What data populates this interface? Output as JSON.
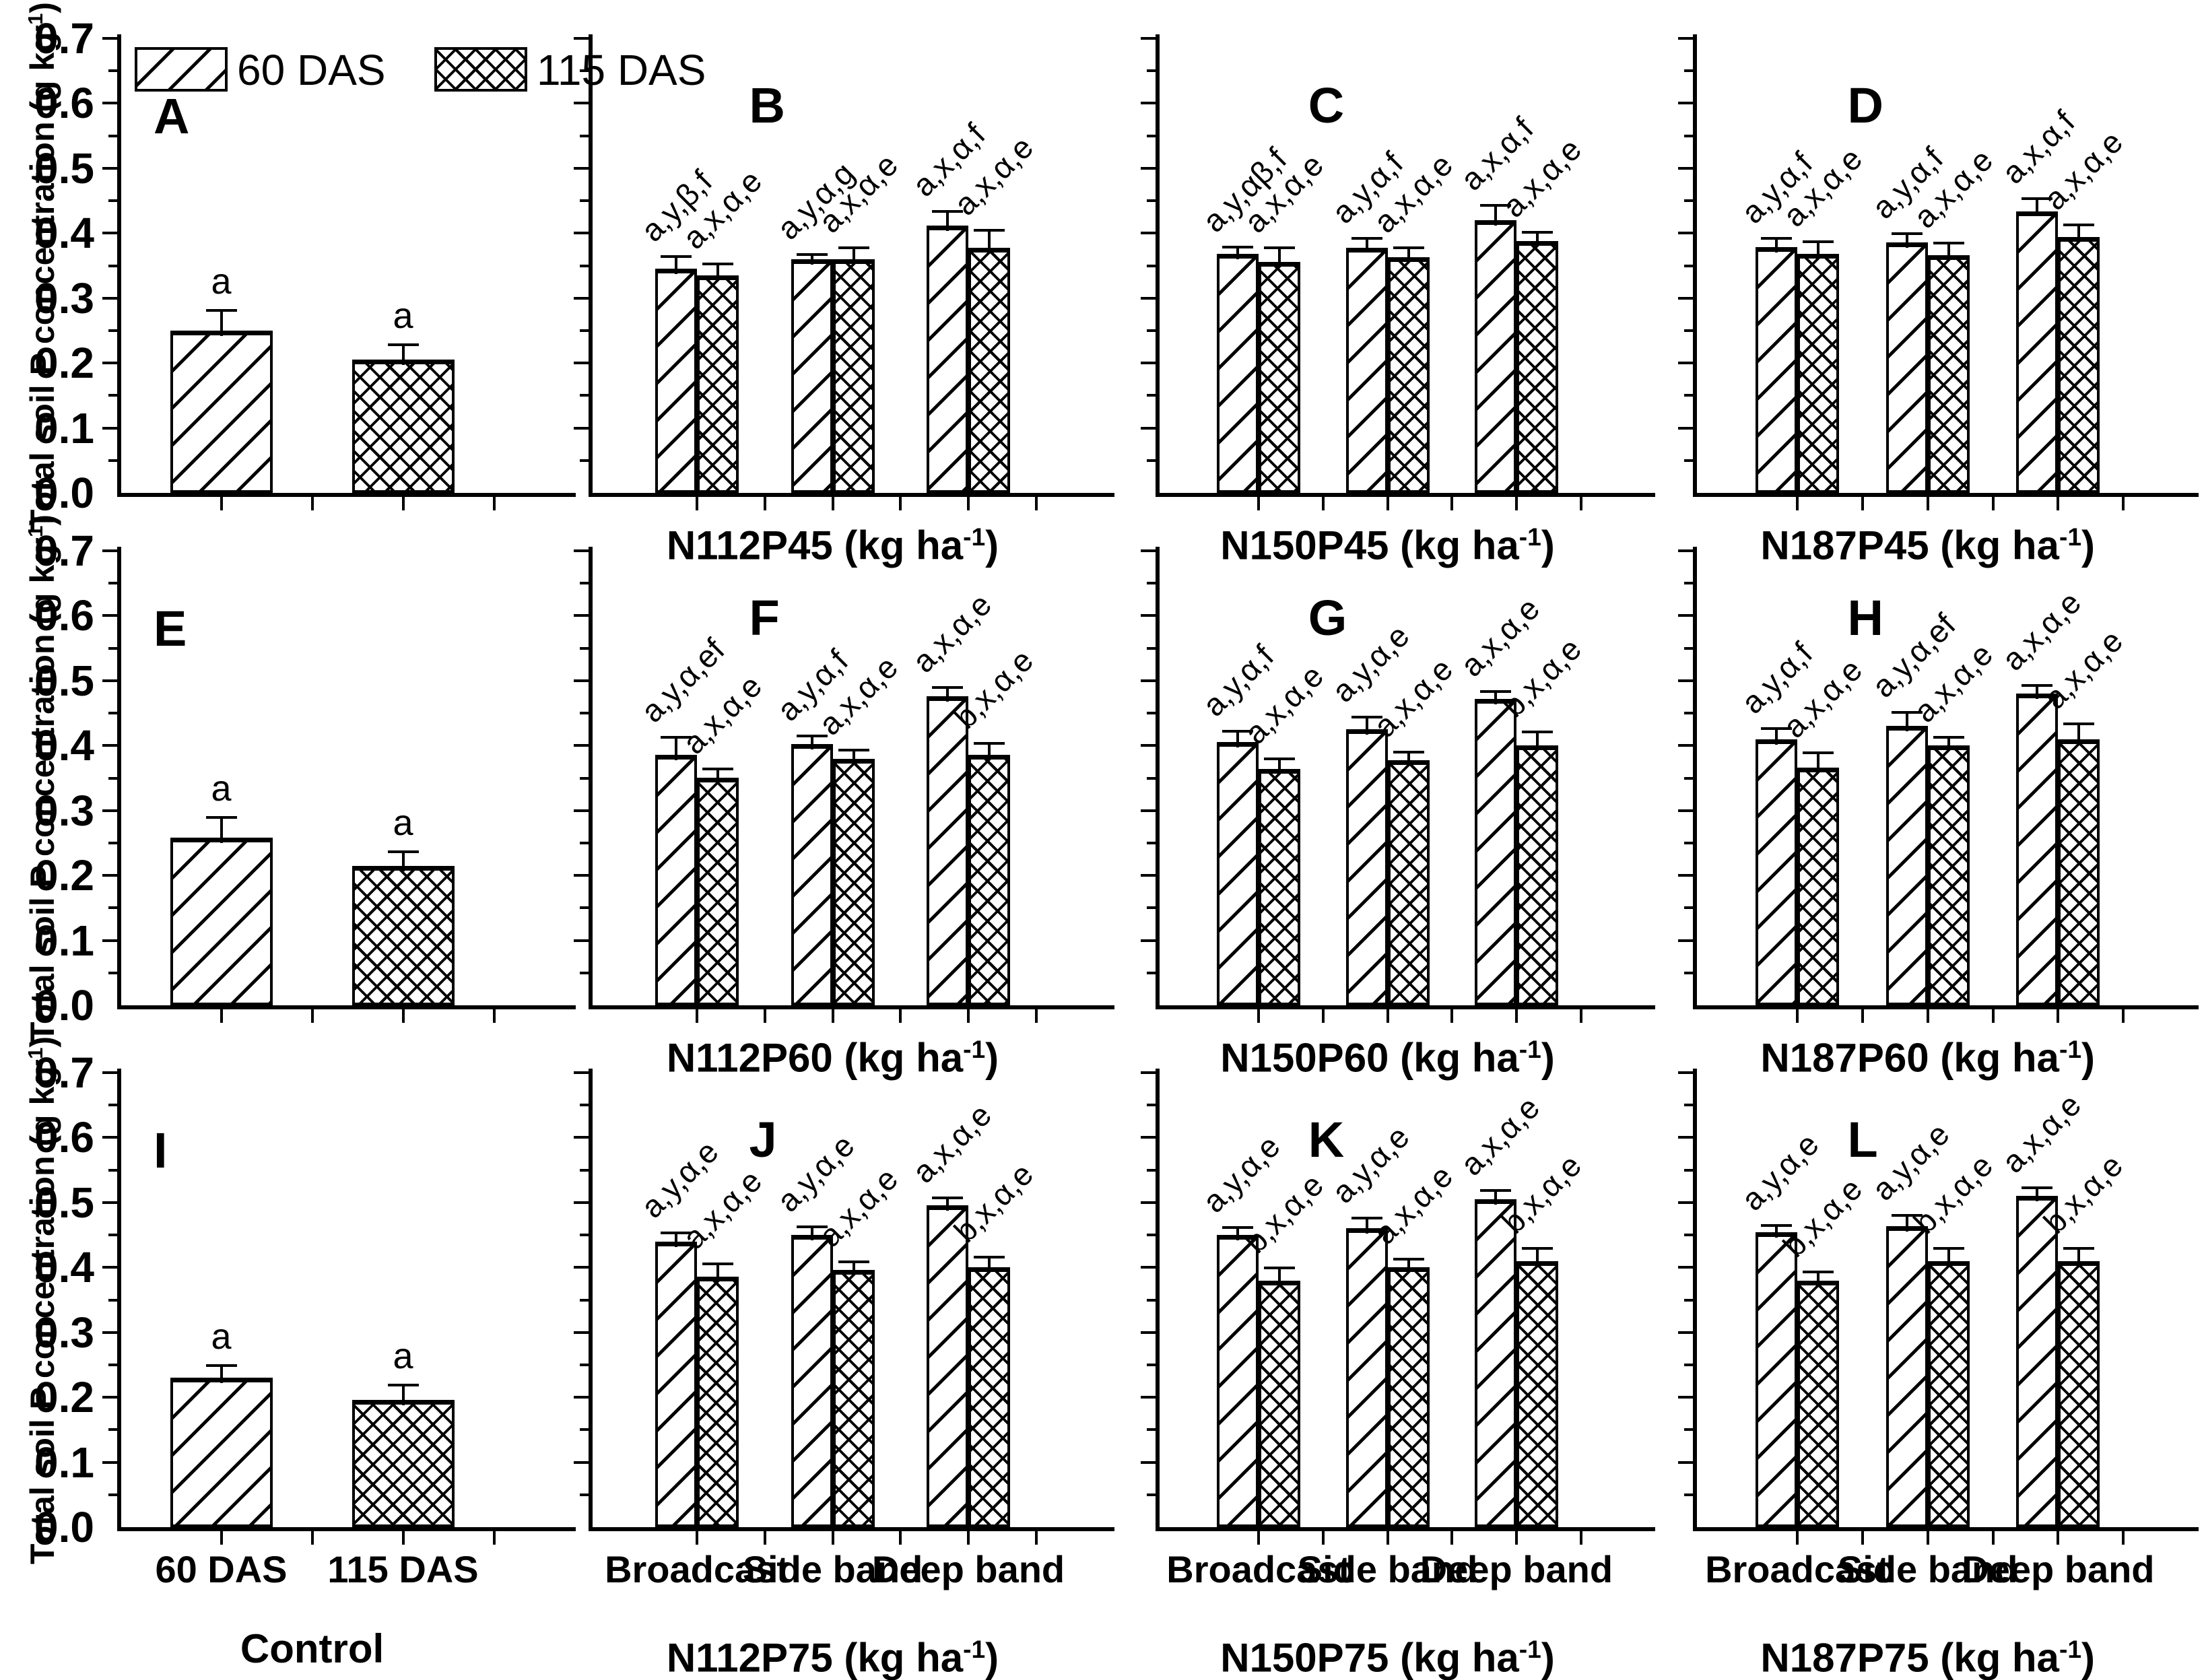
{
  "y_axis": {
    "label_pre": "Total soil P concentration (g kg",
    "label_sup": "-1",
    "label_post": ")",
    "tick_labels": [
      "0.0",
      "0.1",
      "0.2",
      "0.3",
      "0.4",
      "0.5",
      "0.6",
      "0.7"
    ],
    "max": 0.7
  },
  "unit_suffix": {
    "pre": " (kg ha",
    "sup": "-1",
    "post": ")"
  },
  "legend": {
    "items": [
      {
        "label": "60 DAS",
        "pattern": "diagonal"
      },
      {
        "label": "115 DAS",
        "pattern": "crosshatch"
      }
    ]
  },
  "x_tick_labels": {
    "control": [
      "60 DAS",
      "115 DAS"
    ],
    "treatment": [
      "Broadcast",
      "Side band",
      "Deep band"
    ]
  },
  "chart_data": {
    "type": "bar",
    "ylim": [
      0,
      0.7
    ],
    "grid": false,
    "series_names": [
      "60 DAS",
      "115 DAS"
    ],
    "panels": [
      {
        "id": "A",
        "kind": "control",
        "group_label": null,
        "bars": [
          {
            "series": "60 DAS",
            "value": 0.25,
            "err": 0.03,
            "note": "a"
          },
          {
            "series": "115 DAS",
            "value": 0.205,
            "err": 0.022,
            "note": "a"
          }
        ]
      },
      {
        "id": "B",
        "kind": "treatment",
        "group_label": "N112P45",
        "groups": [
          {
            "name": "Broadcast",
            "bars": [
              {
                "series": "60 DAS",
                "value": 0.345,
                "err": 0.018,
                "note": "a,y,β,f"
              },
              {
                "series": "115 DAS",
                "value": 0.335,
                "err": 0.017,
                "note": "a,x,α,e"
              }
            ]
          },
          {
            "name": "Side band",
            "bars": [
              {
                "series": "60 DAS",
                "value": 0.36,
                "err": 0.006,
                "note": "a,y,α,g"
              },
              {
                "series": "115 DAS",
                "value": 0.36,
                "err": 0.016,
                "note": "a,x,α,e"
              }
            ]
          },
          {
            "name": "Deep band",
            "bars": [
              {
                "series": "60 DAS",
                "value": 0.412,
                "err": 0.02,
                "note": "a,x,α,f"
              },
              {
                "series": "115 DAS",
                "value": 0.378,
                "err": 0.025,
                "note": "a,x,α,e"
              }
            ]
          }
        ]
      },
      {
        "id": "C",
        "kind": "treatment",
        "group_label": "N150P45",
        "groups": [
          {
            "name": "Broadcast",
            "bars": [
              {
                "series": "60 DAS",
                "value": 0.368,
                "err": 0.01,
                "note": "a,y,αβ,f"
              },
              {
                "series": "115 DAS",
                "value": 0.356,
                "err": 0.02,
                "note": "a,x,α,e"
              }
            ]
          },
          {
            "name": "Side band",
            "bars": [
              {
                "series": "60 DAS",
                "value": 0.378,
                "err": 0.013,
                "note": "a,y,α,f"
              },
              {
                "series": "115 DAS",
                "value": 0.363,
                "err": 0.013,
                "note": "a,x,α,e"
              }
            ]
          },
          {
            "name": "Deep band",
            "bars": [
              {
                "series": "60 DAS",
                "value": 0.42,
                "err": 0.022,
                "note": "a,x,α,f"
              },
              {
                "series": "115 DAS",
                "value": 0.388,
                "err": 0.012,
                "note": "a,x,α,e"
              }
            ]
          }
        ]
      },
      {
        "id": "D",
        "kind": "treatment",
        "group_label": "N187P45",
        "groups": [
          {
            "name": "Broadcast",
            "bars": [
              {
                "series": "60 DAS",
                "value": 0.379,
                "err": 0.012,
                "note": "a,y,α,f"
              },
              {
                "series": "115 DAS",
                "value": 0.368,
                "err": 0.018,
                "note": "a,x,α,e"
              }
            ]
          },
          {
            "name": "Side band",
            "bars": [
              {
                "series": "60 DAS",
                "value": 0.386,
                "err": 0.012,
                "note": "a,y,α,f"
              },
              {
                "series": "115 DAS",
                "value": 0.366,
                "err": 0.018,
                "note": "a,x,α,e"
              }
            ]
          },
          {
            "name": "Deep band",
            "bars": [
              {
                "series": "60 DAS",
                "value": 0.434,
                "err": 0.018,
                "note": "a,x,α,f"
              },
              {
                "series": "115 DAS",
                "value": 0.394,
                "err": 0.018,
                "note": "a,x,α,e"
              }
            ]
          }
        ]
      },
      {
        "id": "E",
        "kind": "control",
        "group_label": null,
        "bars": [
          {
            "series": "60 DAS",
            "value": 0.258,
            "err": 0.03,
            "note": "a"
          },
          {
            "series": "115 DAS",
            "value": 0.215,
            "err": 0.02,
            "note": "a"
          }
        ]
      },
      {
        "id": "F",
        "kind": "treatment",
        "group_label": "N112P60",
        "groups": [
          {
            "name": "Broadcast",
            "bars": [
              {
                "series": "60 DAS",
                "value": 0.386,
                "err": 0.026,
                "note": "a,y,α,ef"
              },
              {
                "series": "115 DAS",
                "value": 0.351,
                "err": 0.012,
                "note": "a,x,α,e"
              }
            ]
          },
          {
            "name": "Side band",
            "bars": [
              {
                "series": "60 DAS",
                "value": 0.402,
                "err": 0.012,
                "note": "a,y,α,f"
              },
              {
                "series": "115 DAS",
                "value": 0.38,
                "err": 0.012,
                "note": "a,x,α,e"
              }
            ]
          },
          {
            "name": "Deep band",
            "bars": [
              {
                "series": "60 DAS",
                "value": 0.476,
                "err": 0.012,
                "note": "a,x,α,e"
              },
              {
                "series": "115 DAS",
                "value": 0.386,
                "err": 0.016,
                "note": "b,x,α,e"
              }
            ]
          }
        ]
      },
      {
        "id": "G",
        "kind": "treatment",
        "group_label": "N150P60",
        "groups": [
          {
            "name": "Broadcast",
            "bars": [
              {
                "series": "60 DAS",
                "value": 0.405,
                "err": 0.016,
                "note": "a,y,α,f"
              },
              {
                "series": "115 DAS",
                "value": 0.364,
                "err": 0.015,
                "note": "a,x,α,e"
              }
            ]
          },
          {
            "name": "Side band",
            "bars": [
              {
                "series": "60 DAS",
                "value": 0.425,
                "err": 0.018,
                "note": "a,y,α,e"
              },
              {
                "series": "115 DAS",
                "value": 0.377,
                "err": 0.012,
                "note": "a,x,α,e"
              }
            ]
          },
          {
            "name": "Deep band",
            "bars": [
              {
                "series": "60 DAS",
                "value": 0.472,
                "err": 0.01,
                "note": "a,x,α,e"
              },
              {
                "series": "115 DAS",
                "value": 0.4,
                "err": 0.02,
                "note": "b,x,α,e"
              }
            ]
          }
        ]
      },
      {
        "id": "H",
        "kind": "treatment",
        "group_label": "N187P60",
        "groups": [
          {
            "name": "Broadcast",
            "bars": [
              {
                "series": "60 DAS",
                "value": 0.41,
                "err": 0.015,
                "note": "a,y,α,f"
              },
              {
                "series": "115 DAS",
                "value": 0.366,
                "err": 0.022,
                "note": "a,x,α,e"
              }
            ]
          },
          {
            "name": "Side band",
            "bars": [
              {
                "series": "60 DAS",
                "value": 0.43,
                "err": 0.02,
                "note": "a,y,α,ef"
              },
              {
                "series": "115 DAS",
                "value": 0.4,
                "err": 0.012,
                "note": "a,x,α,e"
              }
            ]
          },
          {
            "name": "Deep band",
            "bars": [
              {
                "series": "60 DAS",
                "value": 0.48,
                "err": 0.012,
                "note": "a,x,α,e"
              },
              {
                "series": "115 DAS",
                "value": 0.41,
                "err": 0.022,
                "note": "a,x,α,e"
              }
            ]
          }
        ]
      },
      {
        "id": "I",
        "kind": "control",
        "group_label": "Control",
        "bars": [
          {
            "series": "60 DAS",
            "value": 0.23,
            "err": 0.018,
            "note": "a"
          },
          {
            "series": "115 DAS",
            "value": 0.196,
            "err": 0.022,
            "note": "a"
          }
        ]
      },
      {
        "id": "J",
        "kind": "treatment",
        "group_label": "N112P75",
        "groups": [
          {
            "name": "Broadcast",
            "bars": [
              {
                "series": "60 DAS",
                "value": 0.44,
                "err": 0.012,
                "note": "a,y,α,e"
              },
              {
                "series": "115 DAS",
                "value": 0.386,
                "err": 0.018,
                "note": "a,x,α,e"
              }
            ]
          },
          {
            "name": "Side band",
            "bars": [
              {
                "series": "60 DAS",
                "value": 0.45,
                "err": 0.012,
                "note": "a,y,α,e"
              },
              {
                "series": "115 DAS",
                "value": 0.396,
                "err": 0.012,
                "note": "a,x,α,e"
              }
            ]
          },
          {
            "name": "Deep band",
            "bars": [
              {
                "series": "60 DAS",
                "value": 0.496,
                "err": 0.01,
                "note": "a,x,α,e"
              },
              {
                "series": "115 DAS",
                "value": 0.4,
                "err": 0.015,
                "note": "b,x,α,e"
              }
            ]
          }
        ]
      },
      {
        "id": "K",
        "kind": "treatment",
        "group_label": "N150P75",
        "groups": [
          {
            "name": "Broadcast",
            "bars": [
              {
                "series": "60 DAS",
                "value": 0.45,
                "err": 0.01,
                "note": "a,y,α,e"
              },
              {
                "series": "115 DAS",
                "value": 0.38,
                "err": 0.018,
                "note": "b,x,α,e"
              }
            ]
          },
          {
            "name": "Side band",
            "bars": [
              {
                "series": "60 DAS",
                "value": 0.46,
                "err": 0.015,
                "note": "a,y,α,e"
              },
              {
                "series": "115 DAS",
                "value": 0.4,
                "err": 0.012,
                "note": "a,x,α,e"
              }
            ]
          },
          {
            "name": "Deep band",
            "bars": [
              {
                "series": "60 DAS",
                "value": 0.505,
                "err": 0.012,
                "note": "a,x,α,e"
              },
              {
                "series": "115 DAS",
                "value": 0.41,
                "err": 0.018,
                "note": "b,x,α,e"
              }
            ]
          }
        ]
      },
      {
        "id": "L",
        "kind": "treatment",
        "group_label": "N187P75",
        "groups": [
          {
            "name": "Broadcast",
            "bars": [
              {
                "series": "60 DAS",
                "value": 0.454,
                "err": 0.01,
                "note": "a,y,α,e"
              },
              {
                "series": "115 DAS",
                "value": 0.38,
                "err": 0.012,
                "note": "b,x,α,e"
              }
            ]
          },
          {
            "name": "Side band",
            "bars": [
              {
                "series": "60 DAS",
                "value": 0.464,
                "err": 0.015,
                "note": "a,y,α,e"
              },
              {
                "series": "115 DAS",
                "value": 0.41,
                "err": 0.018,
                "note": "b,x,α,e"
              }
            ]
          },
          {
            "name": "Deep band",
            "bars": [
              {
                "series": "60 DAS",
                "value": 0.51,
                "err": 0.012,
                "note": "a,x,α,e"
              },
              {
                "series": "115 DAS",
                "value": 0.41,
                "err": 0.018,
                "note": "b,x,α,e"
              }
            ]
          }
        ]
      }
    ]
  }
}
